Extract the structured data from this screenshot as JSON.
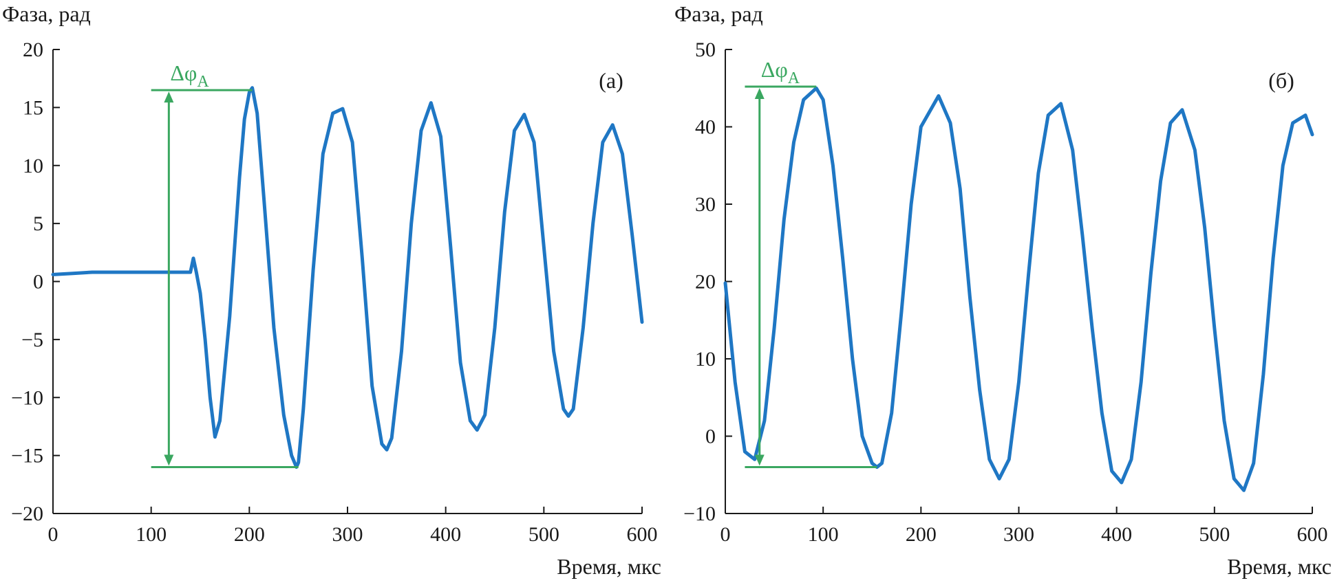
{
  "colors": {
    "series": "#1f77c4",
    "annotation": "#3aa760",
    "axis": "#1a1a1a"
  },
  "chart_data": [
    {
      "type": "line",
      "panel_label": "(а)",
      "ylabel": "Фаза, рад",
      "xlabel": "Время, мкс",
      "xlim": [
        0,
        600
      ],
      "ylim": [
        -20,
        20
      ],
      "xticks": [
        0,
        100,
        200,
        300,
        400,
        500,
        600
      ],
      "yticks": [
        -20,
        -15,
        -10,
        -5,
        0,
        5,
        10,
        15,
        20
      ],
      "ytick_labels": [
        "−20",
        "−15",
        "−10",
        "−5",
        "0",
        "5",
        "10",
        "15",
        "20"
      ],
      "grid": false,
      "series": [
        {
          "x": [
            0,
            20,
            40,
            60,
            80,
            100,
            120,
            140,
            143,
            146,
            150,
            155,
            160,
            165,
            170,
            180,
            190,
            195,
            200,
            203,
            208,
            215,
            225,
            235,
            243,
            248,
            250,
            255,
            265,
            275,
            285,
            295,
            305,
            315,
            325,
            335,
            340,
            345,
            355,
            365,
            375,
            385,
            395,
            405,
            415,
            425,
            432,
            440,
            450,
            460,
            470,
            480,
            490,
            500,
            510,
            520,
            525,
            530,
            540,
            550,
            560,
            570,
            580,
            590,
            600
          ],
          "y": [
            0.6,
            0.7,
            0.8,
            0.8,
            0.8,
            0.8,
            0.8,
            0.8,
            2.0,
            0.8,
            -1.0,
            -5.0,
            -10.0,
            -13.4,
            -12.0,
            -3.0,
            9.0,
            14.0,
            16.3,
            16.7,
            14.5,
            7.0,
            -4.0,
            -11.5,
            -15.0,
            -16.0,
            -15.6,
            -11.0,
            1.0,
            11.0,
            14.5,
            14.9,
            12.0,
            2.0,
            -9.0,
            -14.0,
            -14.5,
            -13.5,
            -6.0,
            5.0,
            13.0,
            15.4,
            12.5,
            3.0,
            -7.0,
            -12.0,
            -12.8,
            -11.5,
            -4.0,
            6.0,
            13.0,
            14.4,
            12.0,
            3.0,
            -6.0,
            -11.0,
            -11.6,
            -11.0,
            -4.0,
            5.0,
            12.0,
            13.5,
            11.0,
            4.0,
            -3.5
          ]
        }
      ],
      "annotation": {
        "text": "Δφ",
        "subscript": "A",
        "x_arrow": 118,
        "y_top": 16.5,
        "y_bottom": -16.0,
        "top_line_x": [
          100,
          203
        ],
        "bottom_line_x": [
          100,
          250
        ]
      }
    },
    {
      "type": "line",
      "panel_label": "(б)",
      "ylabel": "Фаза, рад",
      "xlabel": "Время, мкс",
      "xlim": [
        0,
        600
      ],
      "ylim": [
        -10,
        50
      ],
      "xticks": [
        0,
        100,
        200,
        300,
        400,
        500,
        600
      ],
      "yticks": [
        -10,
        0,
        10,
        20,
        30,
        40,
        50
      ],
      "ytick_labels": [
        "−10",
        "0",
        "10",
        "20",
        "30",
        "40",
        "50"
      ],
      "grid": false,
      "series": [
        {
          "x": [
            0,
            10,
            20,
            30,
            40,
            50,
            60,
            70,
            80,
            93,
            100,
            110,
            120,
            130,
            140,
            150,
            155,
            160,
            170,
            180,
            190,
            200,
            218,
            230,
            240,
            250,
            260,
            270,
            280,
            290,
            300,
            310,
            320,
            330,
            343,
            355,
            365,
            375,
            385,
            395,
            405,
            415,
            425,
            435,
            445,
            455,
            467,
            480,
            490,
            500,
            510,
            520,
            530,
            540,
            550,
            560,
            570,
            580,
            593,
            600
          ],
          "y": [
            19.8,
            7.0,
            -2.0,
            -3.0,
            2.0,
            14.0,
            28.0,
            38.0,
            43.5,
            45.0,
            43.5,
            35.0,
            23.0,
            10.0,
            0.0,
            -3.5,
            -4.0,
            -3.5,
            3.0,
            16.0,
            30.0,
            40.0,
            44.0,
            40.5,
            32.0,
            18.0,
            6.0,
            -3.0,
            -5.5,
            -3.0,
            7.0,
            21.0,
            34.0,
            41.5,
            43.0,
            37.0,
            26.0,
            14.0,
            3.0,
            -4.5,
            -6.0,
            -3.0,
            7.0,
            21.0,
            33.0,
            40.5,
            42.2,
            37.0,
            27.0,
            14.0,
            2.0,
            -5.5,
            -7.0,
            -3.5,
            8.0,
            23.0,
            35.0,
            40.5,
            41.5,
            39.0
          ]
        }
      ],
      "annotation": {
        "text": "Δφ",
        "subscript": "A",
        "x_arrow": 35,
        "y_top": 45.2,
        "y_bottom": -4.0,
        "top_line_x": [
          20,
          93
        ],
        "bottom_line_x": [
          20,
          155
        ]
      }
    }
  ]
}
